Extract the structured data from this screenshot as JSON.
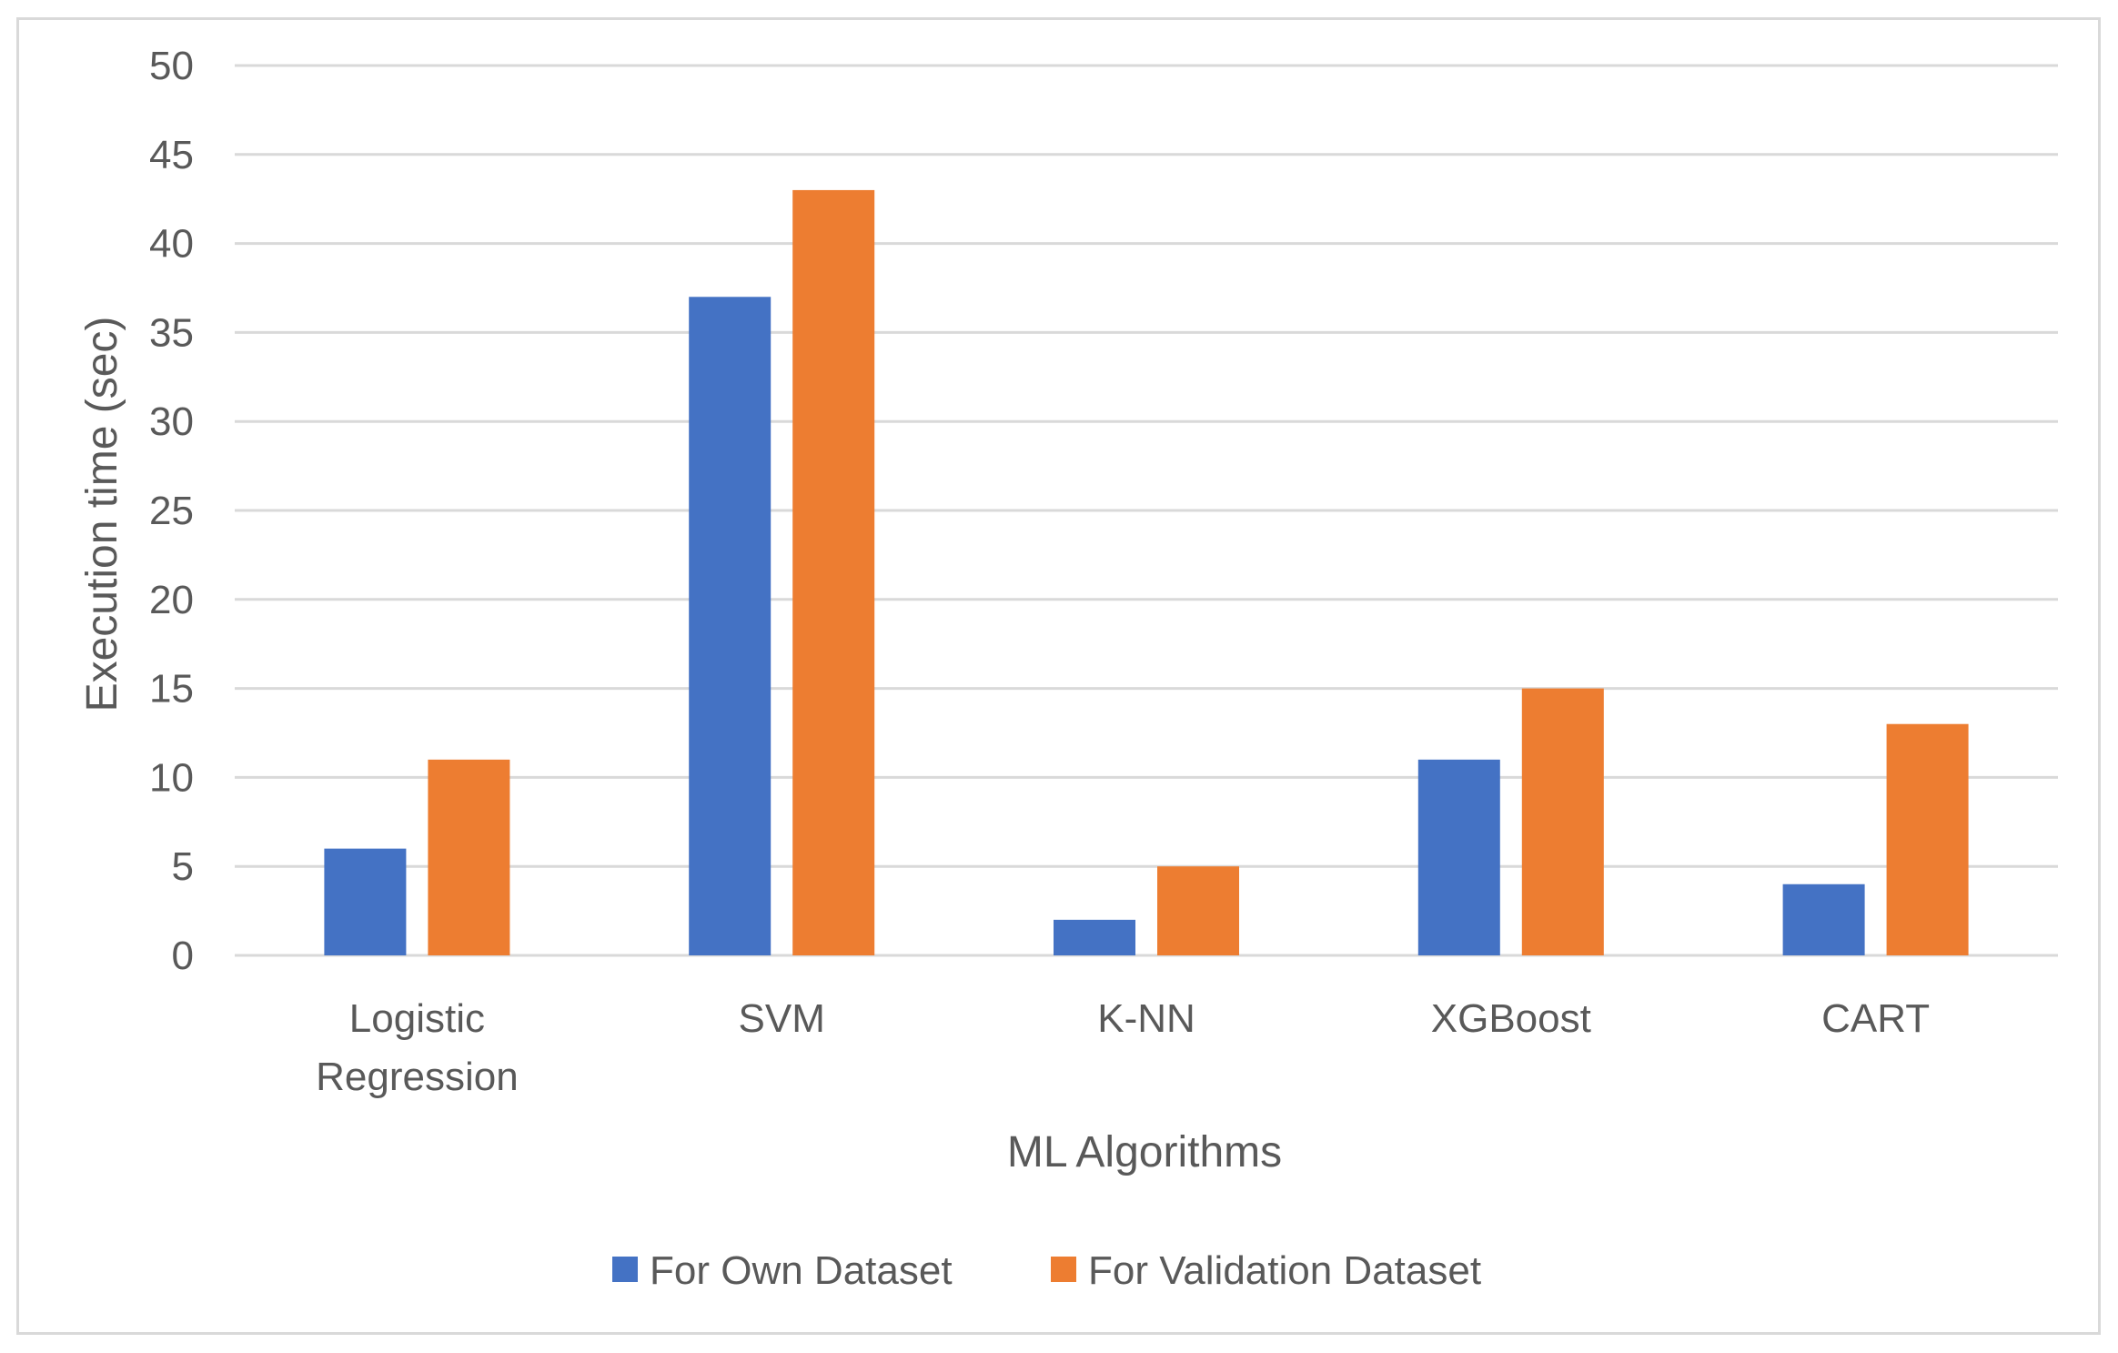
{
  "chart_data": {
    "type": "bar",
    "title": "",
    "xlabel": "ML Algorithms",
    "ylabel": "Execution time (sec)",
    "ylim": [
      0,
      50
    ],
    "yticks": [
      0,
      5,
      10,
      15,
      20,
      25,
      30,
      35,
      40,
      45,
      50
    ],
    "grid": true,
    "legend_position": "bottom",
    "categories": [
      [
        "Logistic",
        "Regression"
      ],
      [
        "SVM"
      ],
      [
        "K-NN"
      ],
      [
        "XGBoost"
      ],
      [
        "CART"
      ]
    ],
    "series": [
      {
        "name": "For Own Dataset",
        "color": "#4472c4",
        "values": [
          6,
          37,
          2,
          11,
          4
        ]
      },
      {
        "name": "For Validation Dataset",
        "color": "#ed7d31",
        "values": [
          11,
          43,
          5,
          15,
          13
        ]
      }
    ]
  }
}
